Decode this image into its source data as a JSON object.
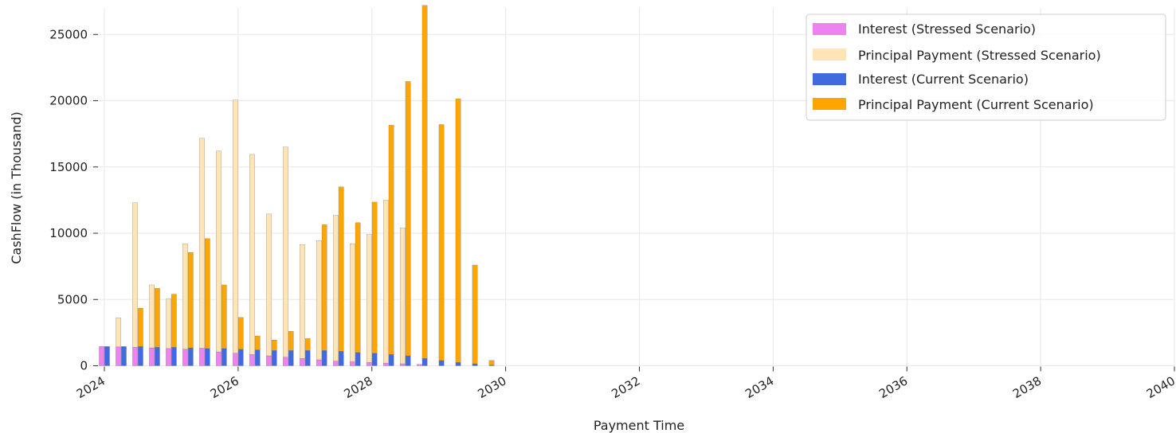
{
  "chart_data": {
    "type": "bar",
    "title": "",
    "xlabel": "Payment Time",
    "ylabel": "CashFlow (in Thousand)",
    "xlim": [
      2024,
      2040
    ],
    "ylim": [
      0,
      27000
    ],
    "xticks": [
      "2024",
      "2026",
      "2028",
      "2030",
      "2032",
      "2034",
      "2036",
      "2038",
      "2040"
    ],
    "yticks": [
      "0",
      "5000",
      "10000",
      "15000",
      "20000",
      "25000"
    ],
    "grid": true,
    "legend_position": "top-right",
    "stressed_dates": [
      2024.0,
      2024.25,
      2024.5,
      2024.75,
      2025.0,
      2025.25,
      2025.5,
      2025.75,
      2026.0,
      2026.25,
      2026.5,
      2026.75,
      2027.0,
      2027.25,
      2027.5,
      2027.75,
      2028.0,
      2028.25,
      2028.5,
      2028.75
    ],
    "current_dates": [
      2024.0,
      2024.25,
      2024.5,
      2024.75,
      2025.0,
      2025.25,
      2025.5,
      2025.75,
      2026.0,
      2026.25,
      2026.5,
      2026.75,
      2027.0,
      2027.25,
      2027.5,
      2027.75,
      2028.0,
      2028.25,
      2028.5,
      2028.75,
      2029.0,
      2029.25,
      2029.5,
      2029.75
    ],
    "series": [
      {
        "name": "Interest (Stressed Scenario)",
        "color": "#ee82ee",
        "group": "stressed",
        "values": [
          1450,
          1420,
          1400,
          1350,
          1300,
          1250,
          1320,
          1050,
          950,
          850,
          750,
          650,
          550,
          450,
          350,
          300,
          250,
          200,
          150,
          100
        ]
      },
      {
        "name": "Principal Payment (Stressed Scenario)",
        "color": "#ffe4b5",
        "group": "stressed",
        "values": [
          0,
          2200,
          10900,
          4750,
          3750,
          7950,
          15850,
          15150,
          19100,
          15100,
          10700,
          15850,
          8600,
          9000,
          11000,
          8900,
          9650,
          12300,
          10250,
          0
        ]
      },
      {
        "name": "Interest (Current Scenario)",
        "color": "#4169e1",
        "group": "current",
        "values": [
          1450,
          1450,
          1450,
          1400,
          1400,
          1350,
          1300,
          1300,
          1250,
          1200,
          1150,
          1150,
          1150,
          1150,
          1100,
          1000,
          950,
          850,
          750,
          550,
          400,
          250,
          150,
          50
        ]
      },
      {
        "name": "Principal Payment (Current Scenario)",
        "color": "#ffa500",
        "group": "current",
        "values": [
          0,
          0,
          2900,
          4450,
          4000,
          7200,
          8300,
          4800,
          2400,
          1050,
          800,
          1450,
          900,
          9500,
          12400,
          9800,
          11400,
          17300,
          20700,
          26650,
          17800,
          19900,
          7450,
          350
        ]
      }
    ]
  }
}
